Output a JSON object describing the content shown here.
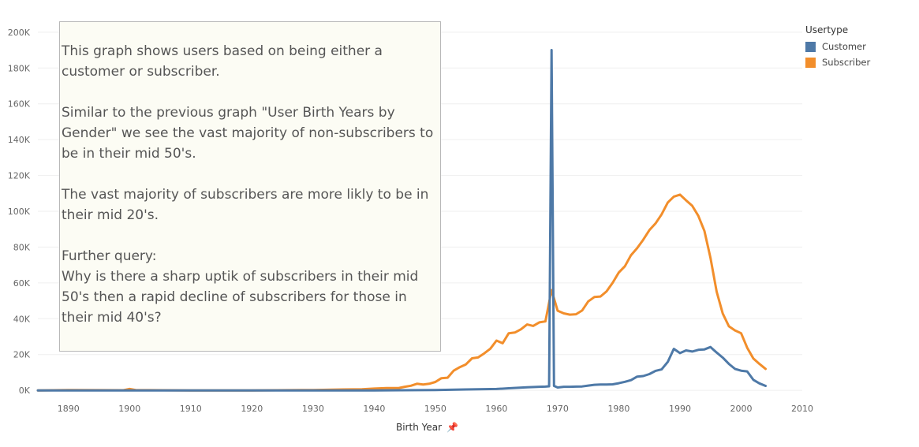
{
  "colors": {
    "customer": "#4e79a7",
    "subscriber": "#f28e2b",
    "grid": "#efefef"
  },
  "legend": {
    "title": "Usertype",
    "items": [
      {
        "label": "Customer",
        "color": "#4e79a7"
      },
      {
        "label": "Subscriber",
        "color": "#f28e2b"
      }
    ]
  },
  "annotation": {
    "paragraph1": "This graph shows users based on being either a customer or subscriber.",
    "paragraph2": "Similar to the previous graph \"User Birth Years by Gender\" we see the vast majority of non-subscribers to be in their mid 50's.",
    "paragraph3": "The vast majority of subscribers are more likly to be in their mid 20's.",
    "paragraph4_line1": "Further query:",
    "paragraph4_line2": "Why is there a sharp uptik of subscribers in their mid 50's then a rapid decline of subscribers for those in their mid 40's?"
  },
  "chart_data": {
    "type": "line",
    "xlabel": "Birth Year",
    "ylabel": "",
    "xlim": [
      1885,
      2010
    ],
    "ylim": [
      -3000,
      203000
    ],
    "x_ticks": [
      1890,
      1900,
      1910,
      1920,
      1930,
      1940,
      1950,
      1960,
      1970,
      1980,
      1990,
      2000,
      2010
    ],
    "y_ticks": [
      0,
      20000,
      40000,
      60000,
      80000,
      100000,
      120000,
      140000,
      160000,
      180000,
      200000
    ],
    "y_tick_labels": [
      "0K",
      "20K",
      "40K",
      "60K",
      "80K",
      "100K",
      "120K",
      "140K",
      "160K",
      "180K",
      "200K"
    ],
    "grid": "horizontal",
    "legend_position": "top-right",
    "series": [
      {
        "name": "Subscriber",
        "color": "#f28e2b",
        "x": [
          1885,
          1890,
          1899,
          1900,
          1901,
          1910,
          1920,
          1930,
          1935,
          1938,
          1940,
          1942,
          1944,
          1945,
          1946,
          1947,
          1948,
          1949,
          1950,
          1951,
          1952,
          1953,
          1954,
          1955,
          1956,
          1957,
          1958,
          1959,
          1960,
          1961,
          1962,
          1963,
          1964,
          1965,
          1966,
          1967,
          1968,
          1969,
          1970,
          1971,
          1972,
          1973,
          1974,
          1975,
          1976,
          1977,
          1978,
          1979,
          1980,
          1981,
          1982,
          1983,
          1984,
          1985,
          1986,
          1987,
          1988,
          1989,
          1990,
          1991,
          1992,
          1993,
          1994,
          1995,
          1996,
          1997,
          1998,
          1999,
          2000,
          2001,
          2002,
          2003,
          2004
        ],
        "y": [
          0,
          200,
          100,
          800,
          200,
          0,
          0,
          200,
          500,
          600,
          1000,
          1300,
          1300,
          2000,
          2600,
          3700,
          3300,
          3700,
          4700,
          6800,
          7100,
          11000,
          13000,
          14500,
          17900,
          18400,
          20700,
          23300,
          27800,
          26300,
          31900,
          32300,
          34100,
          36800,
          36000,
          38000,
          38500,
          56000,
          44500,
          43000,
          42300,
          42500,
          44600,
          49700,
          52100,
          52400,
          55300,
          60100,
          65800,
          69300,
          75500,
          79400,
          84100,
          89500,
          93200,
          98300,
          104900,
          108200,
          109300,
          106100,
          103100,
          97500,
          89000,
          73900,
          55100,
          42900,
          35800,
          33500,
          31900,
          23800,
          17800,
          14800,
          12000
        ]
      },
      {
        "name": "Customer",
        "color": "#4e79a7",
        "x": [
          1885,
          1890,
          1900,
          1910,
          1920,
          1930,
          1940,
          1950,
          1955,
          1960,
          1962,
          1965,
          1967,
          1968,
          1968.6,
          1969,
          1969.4,
          1970,
          1971,
          1972,
          1973,
          1974,
          1975,
          1976,
          1977,
          1978,
          1979,
          1980,
          1981,
          1982,
          1983,
          1984,
          1985,
          1986,
          1987,
          1988,
          1989,
          1990,
          1991,
          1992,
          1993,
          1994,
          1995,
          1996,
          1997,
          1998,
          1999,
          2000,
          2001,
          2002,
          2003,
          2004
        ],
        "y": [
          0,
          0,
          0,
          0,
          0,
          0,
          0,
          200,
          500,
          800,
          1200,
          1700,
          2000,
          2100,
          2300,
          190000,
          2500,
          1600,
          2000,
          2000,
          2100,
          2200,
          2700,
          3100,
          3300,
          3300,
          3400,
          4000,
          4800,
          5700,
          7700,
          8000,
          9100,
          10900,
          11700,
          15900,
          23200,
          20800,
          22300,
          21700,
          22600,
          22900,
          24200,
          21100,
          18300,
          14800,
          12000,
          11000,
          10600,
          5900,
          3900,
          2500
        ]
      }
    ]
  }
}
